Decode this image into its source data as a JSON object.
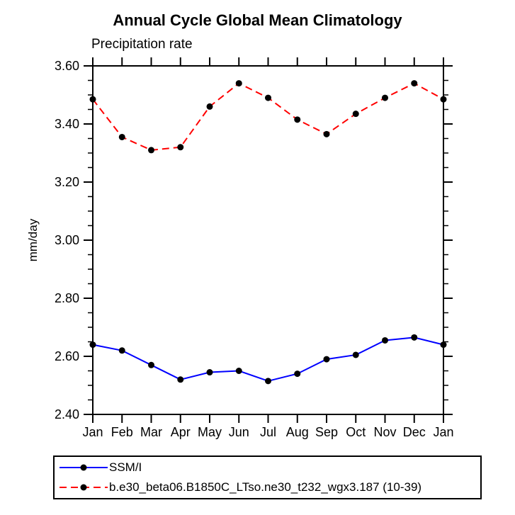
{
  "chart_data": {
    "type": "line",
    "title": "Annual Cycle Global Mean Climatology",
    "subtitle": "Precipitation rate",
    "ylabel": "mm/day",
    "xlabel": "",
    "categories": [
      "Jan",
      "Feb",
      "Mar",
      "Apr",
      "May",
      "Jun",
      "Jul",
      "Aug",
      "Sep",
      "Oct",
      "Nov",
      "Dec",
      "Jan"
    ],
    "ylim": [
      2.4,
      3.6
    ],
    "ytick_step": 0.2,
    "ytick_minor_step": 0.05,
    "ytick_labels": [
      "2.40",
      "2.60",
      "2.80",
      "3.00",
      "3.20",
      "3.40",
      "3.60"
    ],
    "grid": false,
    "legend_position": "bottom-left-boxed",
    "axis_color": "#000000",
    "marker_color": "#000000",
    "series": [
      {
        "name": "SSM/I",
        "color": "#0000ff",
        "line_style": "solid",
        "marker": "filled-circle",
        "values": [
          2.64,
          2.62,
          2.57,
          2.52,
          2.545,
          2.55,
          2.515,
          2.54,
          2.59,
          2.605,
          2.655,
          2.665,
          2.64
        ]
      },
      {
        "name": "b.e30_beta06.B1850C_LTso.ne30_t232_wgx3.187 (10-39)",
        "color": "#ff0000",
        "line_style": "dashed",
        "marker": "filled-circle",
        "values": [
          3.485,
          3.355,
          3.31,
          3.32,
          3.46,
          3.54,
          3.49,
          3.415,
          3.365,
          3.435,
          3.49,
          3.54,
          3.485
        ]
      }
    ]
  }
}
